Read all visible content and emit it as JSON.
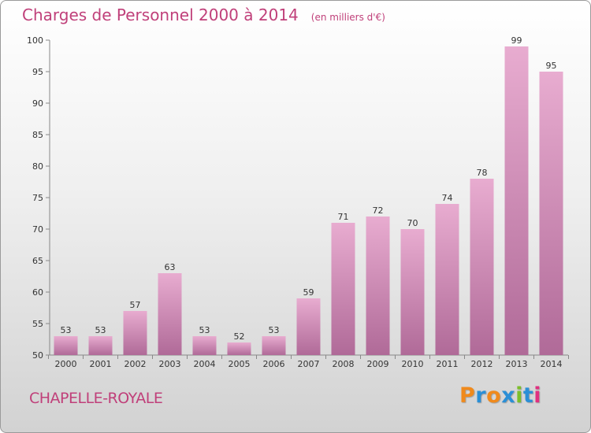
{
  "title": "Charges de Personnel 2000 à 2014",
  "subtitle": "(en milliers d'€)",
  "commune": "CHAPELLE-ROYALE",
  "logo": {
    "text": "Proxiti",
    "colors": [
      "#f08a1c",
      "#2a8fd6",
      "#f08a1c",
      "#2a8fd6",
      "#7cbf2a",
      "#2a8fd6",
      "#e03080"
    ]
  },
  "colors": {
    "bar_top": "#e8acd0",
    "bar_bottom": "#b06a98",
    "accent": "#c0407a"
  },
  "chart_data": {
    "type": "bar",
    "categories": [
      "2000",
      "2001",
      "2002",
      "2003",
      "2004",
      "2005",
      "2006",
      "2007",
      "2008",
      "2009",
      "2010",
      "2011",
      "2012",
      "2013",
      "2014"
    ],
    "values": [
      53,
      53,
      57,
      63,
      53,
      52,
      53,
      59,
      71,
      72,
      70,
      74,
      78,
      99,
      95
    ],
    "ylim": [
      50,
      100
    ],
    "yticks": [
      50,
      55,
      60,
      65,
      70,
      75,
      80,
      85,
      90,
      95,
      100
    ],
    "grid": false,
    "data_labels": true
  }
}
